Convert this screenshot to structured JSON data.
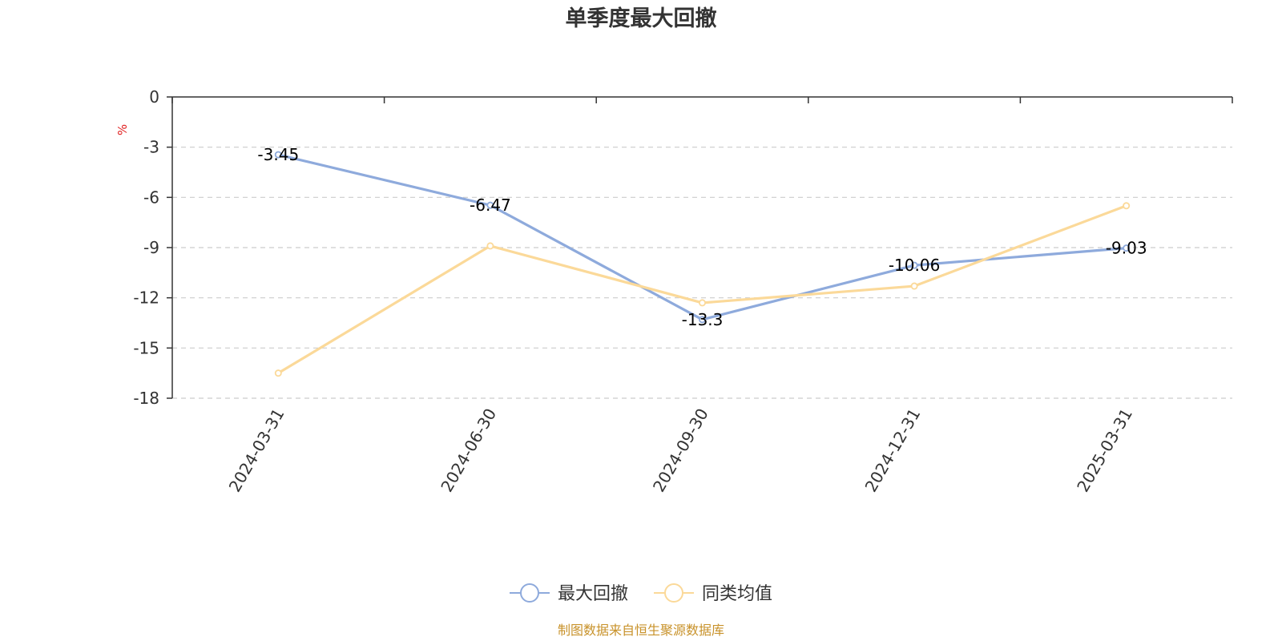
{
  "chart_data": {
    "type": "line",
    "title": "单季度最大回撤",
    "ylabel": "%",
    "ylim": [
      -18,
      0
    ],
    "yticks": [
      0,
      -3,
      -6,
      -9,
      -12,
      -15,
      -18
    ],
    "categories": [
      "2024-03-31",
      "2024-06-30",
      "2024-09-30",
      "2024-12-31",
      "2025-03-31"
    ],
    "series": [
      {
        "name": "最大回撤",
        "color": "#8eaadc",
        "values": [
          -3.45,
          -6.47,
          -13.3,
          -10.06,
          -9.03
        ],
        "show_labels": true
      },
      {
        "name": "同类均值",
        "color": "#fbd999",
        "values": [
          -16.5,
          -8.9,
          -12.3,
          -11.3,
          -6.5
        ],
        "show_labels": false
      }
    ],
    "grid": true,
    "legend_position": "bottom-center"
  },
  "footer": {
    "text": "制图数据来自恒生聚源数据库",
    "color": "#c8922a"
  },
  "colors": {
    "unit": "#e02020",
    "axis": "#333333",
    "grid": "#cccccc"
  }
}
